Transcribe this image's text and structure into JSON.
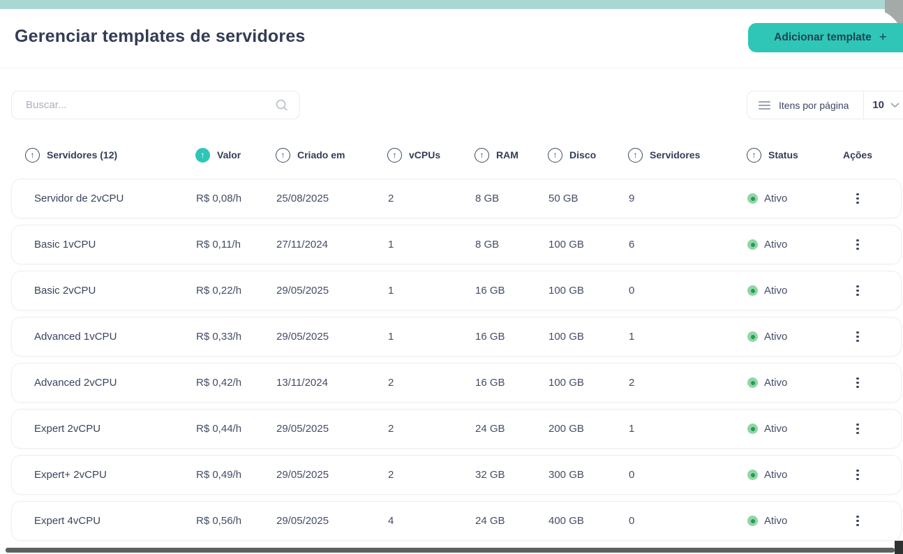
{
  "page": {
    "title": "Gerenciar templates de servidores",
    "add_button_label": "Adicionar template",
    "add_button_plus": "+"
  },
  "toolbar": {
    "search_placeholder": "Buscar...",
    "items_per_page_label": "Itens por página",
    "items_per_page_value": "10"
  },
  "table": {
    "columns": [
      {
        "label": "Servidores (12)",
        "sortable": true,
        "active_sort": false
      },
      {
        "label": "Valor",
        "sortable": true,
        "active_sort": true
      },
      {
        "label": "Criado em",
        "sortable": true,
        "active_sort": false
      },
      {
        "label": "vCPUs",
        "sortable": true,
        "active_sort": false
      },
      {
        "label": "RAM",
        "sortable": true,
        "active_sort": false
      },
      {
        "label": "Disco",
        "sortable": true,
        "active_sort": false
      },
      {
        "label": "Servidores",
        "sortable": true,
        "active_sort": false
      },
      {
        "label": "Status",
        "sortable": true,
        "active_sort": false
      },
      {
        "label": "Ações",
        "sortable": false,
        "active_sort": false
      }
    ],
    "sort_icon": "arrow-up",
    "rows": [
      {
        "name": "Servidor de 2vCPU",
        "valor": "R$ 0,08/h",
        "criado_em": "25/08/2025",
        "vcpus": "2",
        "ram": "8 GB",
        "disco": "50 GB",
        "servidores": "9",
        "status": "Ativo"
      },
      {
        "name": "Basic 1vCPU",
        "valor": "R$ 0,11/h",
        "criado_em": "27/11/2024",
        "vcpus": "1",
        "ram": "8 GB",
        "disco": "100 GB",
        "servidores": "6",
        "status": "Ativo"
      },
      {
        "name": "Basic 2vCPU",
        "valor": "R$ 0,22/h",
        "criado_em": "29/05/2025",
        "vcpus": "1",
        "ram": "16 GB",
        "disco": "100 GB",
        "servidores": "0",
        "status": "Ativo"
      },
      {
        "name": "Advanced 1vCPU",
        "valor": "R$ 0,33/h",
        "criado_em": "29/05/2025",
        "vcpus": "1",
        "ram": "16 GB",
        "disco": "100 GB",
        "servidores": "1",
        "status": "Ativo"
      },
      {
        "name": "Advanced 2vCPU",
        "valor": "R$ 0,42/h",
        "criado_em": "13/11/2024",
        "vcpus": "2",
        "ram": "16 GB",
        "disco": "100 GB",
        "servidores": "2",
        "status": "Ativo"
      },
      {
        "name": "Expert 2vCPU",
        "valor": "R$ 0,44/h",
        "criado_em": "29/05/2025",
        "vcpus": "2",
        "ram": "24 GB",
        "disco": "200 GB",
        "servidores": "1",
        "status": "Ativo"
      },
      {
        "name": "Expert+ 2vCPU",
        "valor": "R$ 0,49/h",
        "criado_em": "29/05/2025",
        "vcpus": "2",
        "ram": "32 GB",
        "disco": "300 GB",
        "servidores": "0",
        "status": "Ativo"
      },
      {
        "name": "Expert 4vCPU",
        "valor": "R$ 0,56/h",
        "criado_em": "29/05/2025",
        "vcpus": "4",
        "ram": "24 GB",
        "disco": "400 GB",
        "servidores": "0",
        "status": "Ativo"
      }
    ]
  },
  "colors": {
    "accent_teal": "#2fc6b7",
    "light_teal_strip": "#a8d8d1",
    "text_navy": "#333d58",
    "status_green_outer": "#92d5a6",
    "status_green_inner": "#1f9e53"
  }
}
